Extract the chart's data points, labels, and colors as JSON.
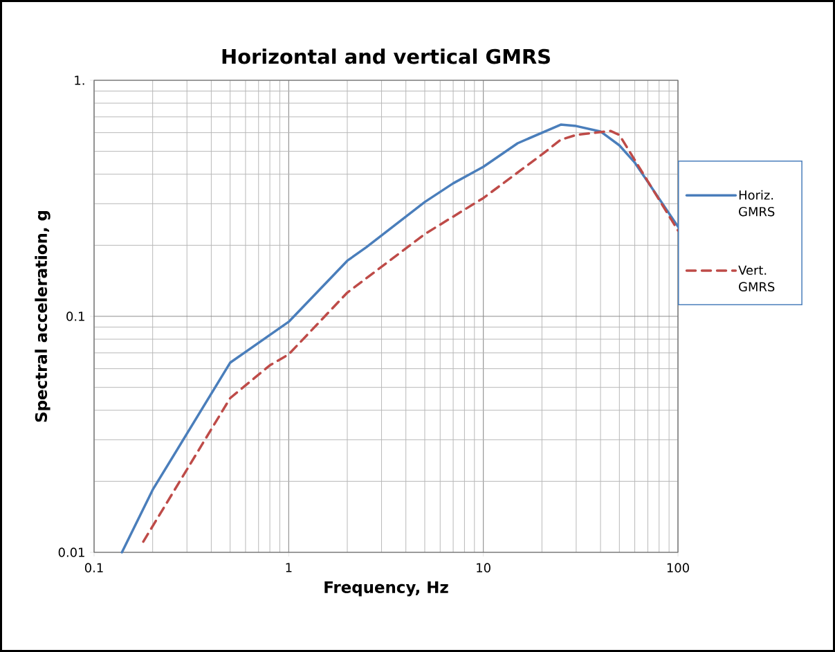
{
  "chart_data": {
    "type": "line",
    "title": "Horizontal and vertical GMRS",
    "xlabel": "Frequency, Hz",
    "ylabel": "Spectral acceleration, g",
    "log": "xy",
    "grid": true,
    "legend": "right",
    "marker": "none",
    "xlim": [
      0.1,
      100
    ],
    "ylim": [
      0.01,
      1
    ],
    "xticks": [
      0.1,
      1,
      10,
      100
    ],
    "yticks": [
      0.01,
      0.1,
      {
        "value": 1,
        "label": "1."
      }
    ],
    "series": [
      {
        "name": "Horiz. GMRS",
        "color": "#4a7ebb",
        "line_style": "solid",
        "x": [
          0.139,
          0.2,
          0.5,
          1,
          2,
          2.5,
          5,
          7,
          10,
          15,
          25,
          30,
          40,
          50,
          60,
          100
        ],
        "values": [
          0.01,
          0.0184,
          0.0636,
          0.0948,
          0.172,
          0.196,
          0.305,
          0.366,
          0.43,
          0.541,
          0.649,
          0.64,
          0.607,
          0.53,
          0.448,
          0.24
        ]
      },
      {
        "name": "Vert. GMRS",
        "color": "#be4b48",
        "line_style": "dashed",
        "x": [
          0.179,
          0.5,
          0.8,
          1,
          2,
          5,
          10,
          20,
          25,
          30,
          45,
          50,
          100
        ],
        "values": [
          0.0111,
          0.045,
          0.062,
          0.069,
          0.126,
          0.223,
          0.317,
          0.485,
          0.56,
          0.587,
          0.61,
          0.587,
          0.231
        ]
      }
    ]
  }
}
